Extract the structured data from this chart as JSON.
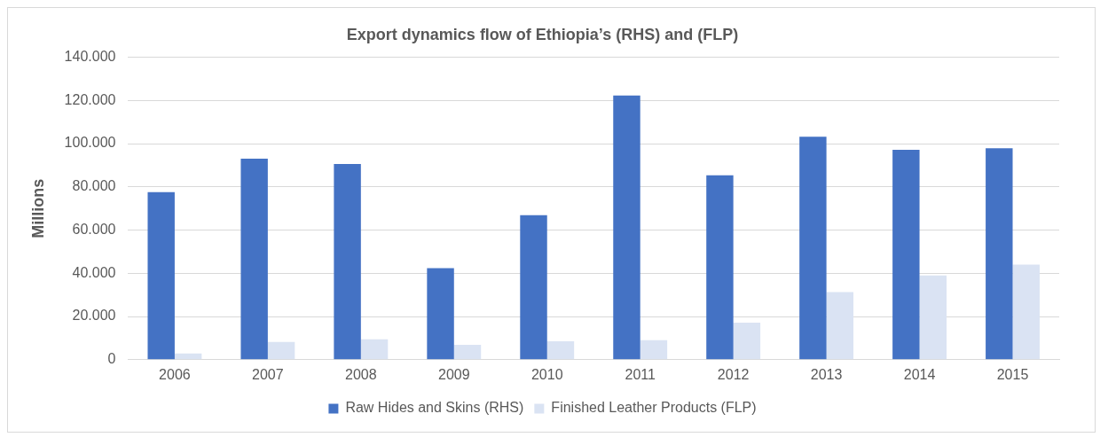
{
  "chart_data": {
    "type": "bar",
    "title": "Export dynamics flow of Ethiopia’s (RHS) and (FLP)",
    "ylabel": "Millions",
    "categories": [
      "2006",
      "2007",
      "2008",
      "2009",
      "2010",
      "2011",
      "2012",
      "2013",
      "2014",
      "2015"
    ],
    "series": [
      {
        "name": "Raw Hides and Skins (RHS)",
        "color": "#4472c4",
        "values": [
          77600,
          93100,
          90600,
          42400,
          66900,
          122300,
          85400,
          103200,
          97200,
          97900
        ]
      },
      {
        "name": "Finished Leather Products (FLP)",
        "color": "#dae3f3",
        "values": [
          2900,
          8200,
          9500,
          6900,
          8500,
          9000,
          17200,
          31300,
          39000,
          44000
        ]
      }
    ],
    "ylim": [
      0,
      140000
    ],
    "yticks": [
      0,
      {
        "value": 20000,
        "label": "20.000"
      },
      {
        "value": 40000,
        "label": "40.000"
      },
      {
        "value": 60000,
        "label": "60.000"
      },
      {
        "value": 80000,
        "label": "80.000"
      },
      {
        "value": 100000,
        "label": "100.000"
      },
      {
        "value": 120000,
        "label": "120.000"
      },
      {
        "value": 140000,
        "label": "140.000"
      }
    ],
    "grid": "y",
    "legend": "bottom"
  }
}
